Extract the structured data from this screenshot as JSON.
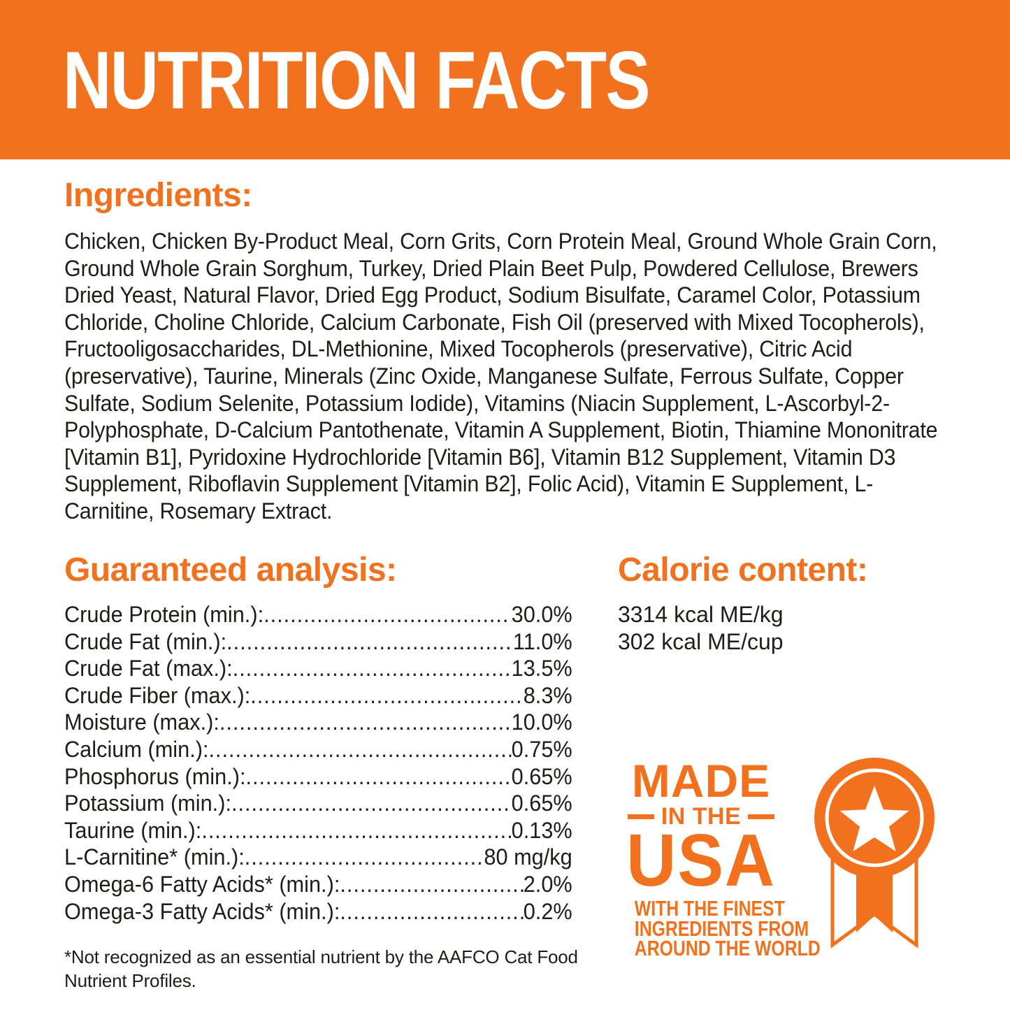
{
  "colors": {
    "orange": "#F2711E",
    "text": "#1D1D1B",
    "background": "#FFFFFF",
    "header_text": "#FFFFFF"
  },
  "header": {
    "title": "NUTRITION FACTS"
  },
  "ingredients": {
    "heading": "Ingredients:",
    "text": "Chicken, Chicken By-Product Meal, Corn Grits, Corn Protein Meal, Ground Whole Grain Corn, Ground Whole Grain Sorghum, Turkey, Dried Plain Beet Pulp, Powdered Cellulose, Brewers Dried Yeast, Natural Flavor, Dried Egg Product, Sodium Bisulfate, Caramel Color, Potassium Chloride, Choline Chloride, Calcium Carbonate, Fish Oil (preserved with Mixed Tocopherols), Fructooligosaccharides, DL-Methionine, Mixed Tocopherols (preservative), Citric Acid (preservative), Taurine, Minerals (Zinc Oxide, Manganese Sulfate, Ferrous Sulfate, Copper Sulfate, Sodium Selenite, Potassium Iodide), Vitamins (Niacin Supplement, L-Ascorbyl-2-Polyphosphate, D-Calcium Pantothenate, Vitamin A Supplement, Biotin, Thiamine Mononitrate [Vitamin B1], Pyridoxine Hydrochloride [Vitamin B6], Vitamin B12 Supplement, Vitamin D3 Supplement, Riboflavin Supplement [Vitamin B2], Folic Acid), Vitamin E Supplement, L-Carnitine, Rosemary Extract."
  },
  "guaranteed_analysis": {
    "heading": "Guaranteed analysis:",
    "rows": [
      {
        "label": "Crude Protein (min.):",
        "value": "30.0%"
      },
      {
        "label": "Crude Fat (min.):",
        "value": "11.0%"
      },
      {
        "label": "Crude Fat (max.):",
        "value": "13.5%"
      },
      {
        "label": "Crude Fiber (max.):",
        "value": "8.3%"
      },
      {
        "label": "Moisture (max.):",
        "value": "10.0%"
      },
      {
        "label": "Calcium (min.):",
        "value": "0.75%"
      },
      {
        "label": "Phosphorus (min.):",
        "value": "0.65%"
      },
      {
        "label": "Potassium (min.):",
        "value": "0.65%"
      },
      {
        "label": "Taurine (min.):",
        "value": "0.13%"
      },
      {
        "label": "L-Carnitine* (min.):",
        "value": "80 mg/kg"
      },
      {
        "label": "Omega-6 Fatty Acids* (min.):",
        "value": "2.0%"
      },
      {
        "label": "Omega-3 Fatty Acids* (min.):",
        "value": "0.2%"
      }
    ]
  },
  "calorie_content": {
    "heading": "Calorie content:",
    "lines": [
      "3314 kcal ME/kg",
      "302 kcal ME/cup"
    ]
  },
  "made_in_usa": {
    "line1": "MADE",
    "line2": "IN THE",
    "line3": "USA",
    "sublines": [
      "WITH THE FINEST",
      "INGREDIENTS FROM",
      "AROUND THE WORLD"
    ],
    "icon": "award-ribbon-star-icon"
  },
  "footnote": {
    "text": "*Not recognized as an essential nutrient by the AAFCO Cat Food Nutrient Profiles."
  }
}
